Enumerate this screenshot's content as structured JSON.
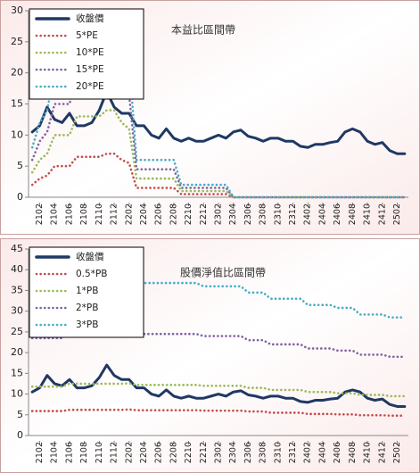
{
  "chart_data": [
    {
      "type": "line",
      "title": "本益比區間帶",
      "categories": [
        null,
        "2102",
        null,
        "2104",
        null,
        "2106",
        null,
        "2108",
        null,
        "2110",
        null,
        "2112",
        null,
        "2202",
        null,
        "2204",
        null,
        "2206",
        null,
        "2208",
        null,
        "2210",
        null,
        "2212",
        null,
        "2302",
        null,
        "2304",
        null,
        "2306",
        null,
        "2308",
        null,
        "2310",
        null,
        "2312",
        null,
        "2402",
        null,
        "2404",
        null,
        "2406",
        null,
        "2408",
        null,
        "2410",
        null,
        "2412",
        null,
        "2502",
        null
      ],
      "ylim": [
        0,
        30
      ],
      "yticks": [
        0,
        5,
        10,
        15,
        20,
        25,
        30
      ],
      "legend": "upper-left",
      "series": [
        {
          "name": "收盤價",
          "color": "#1f3864",
          "style": "solid",
          "values": [
            10.5,
            11.5,
            14.5,
            12.5,
            12,
            13.5,
            11.5,
            11.5,
            12,
            14,
            17,
            14.5,
            13.5,
            13.5,
            11.5,
            11.5,
            10,
            9.5,
            11,
            9.5,
            9,
            9.5,
            9,
            9,
            9.5,
            10,
            9.5,
            10.5,
            10.8,
            9.8,
            9.5,
            9,
            9.5,
            9.5,
            9,
            9,
            8.2,
            8,
            8.5,
            8.5,
            8.8,
            9,
            10.5,
            11,
            10.5,
            9,
            8.5,
            8.8,
            7.5,
            7,
            7
          ]
        },
        {
          "name": "5*PE",
          "color": "#c0504d",
          "style": "dotted",
          "values": [
            2,
            3,
            3.5,
            5,
            5,
            5,
            6.5,
            6.5,
            6.5,
            6.5,
            7,
            7,
            6,
            5.5,
            1.5,
            1.5,
            1.5,
            1.5,
            1.5,
            1.5,
            0.5,
            0.5,
            0.5,
            0.5,
            0.5,
            0.5,
            0.5,
            0,
            0,
            0,
            0,
            0,
            0,
            0,
            0,
            0,
            0,
            0,
            0,
            0,
            0,
            0,
            0,
            0,
            0,
            0,
            0,
            0,
            0,
            0,
            0
          ]
        },
        {
          "name": "10*PE",
          "color": "#9bbb59",
          "style": "dotted",
          "values": [
            4,
            6,
            7,
            10,
            10,
            10,
            13,
            13,
            13,
            13,
            14,
            14,
            12,
            11,
            3,
            3,
            3,
            3,
            3,
            3,
            1,
            1,
            1,
            1,
            1,
            1,
            1,
            0,
            0,
            0,
            0,
            0,
            0,
            0,
            0,
            0,
            0,
            0,
            0,
            0,
            0,
            0,
            0,
            0,
            0,
            0,
            0,
            0,
            0,
            0,
            0
          ]
        },
        {
          "name": "15*PE",
          "color": "#8064a2",
          "style": "dotted",
          "values": [
            6,
            9,
            10.5,
            15,
            15,
            15,
            19.5,
            19.5,
            19.5,
            19.5,
            21,
            21,
            18,
            16.5,
            4.5,
            4.5,
            4.5,
            4.5,
            4.5,
            4.5,
            1.5,
            1.5,
            1.5,
            1.5,
            1.5,
            1.5,
            1.5,
            0,
            0,
            0,
            0,
            0,
            0,
            0,
            0,
            0,
            0,
            0,
            0,
            0,
            0,
            0,
            0,
            0,
            0,
            0,
            0,
            0,
            0,
            0,
            0
          ]
        },
        {
          "name": "20*PE",
          "color": "#4bacc6",
          "style": "dotted",
          "values": [
            8,
            12,
            14,
            20,
            20,
            20,
            26,
            26,
            26,
            26,
            28,
            28,
            24,
            22,
            6,
            6,
            6,
            6,
            6,
            6,
            2,
            2,
            2,
            2,
            2,
            2,
            2,
            0,
            0,
            0,
            0,
            0,
            0,
            0,
            0,
            0,
            0,
            0,
            0,
            0,
            0,
            0,
            0,
            0,
            0,
            0,
            0,
            0,
            0,
            0,
            0
          ]
        }
      ]
    },
    {
      "type": "line",
      "title": "股價淨值比區間帶",
      "categories": [
        null,
        "2102",
        null,
        "2104",
        null,
        "2106",
        null,
        "2108",
        null,
        "2110",
        null,
        "2112",
        null,
        "2202",
        null,
        "2204",
        null,
        "2206",
        null,
        "2208",
        null,
        "2210",
        null,
        "2212",
        null,
        "2302",
        null,
        "2304",
        null,
        "2306",
        null,
        "2308",
        null,
        "2310",
        null,
        "2312",
        null,
        "2402",
        null,
        "2404",
        null,
        "2406",
        null,
        "2408",
        null,
        "2410",
        null,
        "2412",
        null,
        "2502",
        null
      ],
      "ylim": [
        0,
        45
      ],
      "yticks": [
        0,
        5,
        10,
        15,
        20,
        25,
        30,
        35,
        40,
        45
      ],
      "legend": "upper-left",
      "series": [
        {
          "name": "收盤價",
          "color": "#1f3864",
          "style": "solid",
          "values": [
            10.5,
            11.5,
            14.5,
            12.5,
            12,
            13.5,
            11.5,
            11.5,
            12,
            14,
            17,
            14.5,
            13.5,
            13.5,
            11.5,
            11.5,
            10,
            9.5,
            11,
            9.5,
            9,
            9.5,
            9,
            9,
            9.5,
            10,
            9.5,
            10.5,
            10.8,
            9.8,
            9.5,
            9,
            9.5,
            9.5,
            9,
            9,
            8.2,
            8,
            8.5,
            8.5,
            8.8,
            9,
            10.5,
            11,
            10.5,
            9,
            8.5,
            8.8,
            7.5,
            7,
            7
          ]
        },
        {
          "name": "0.5*PB",
          "color": "#c0504d",
          "style": "dotted",
          "values": [
            5.9,
            5.9,
            5.9,
            5.9,
            5.9,
            6.2,
            6.2,
            6.2,
            6.2,
            6.2,
            6.2,
            6.2,
            6.2,
            6.3,
            6.1,
            6.1,
            6.1,
            6.1,
            6.1,
            6.1,
            6.1,
            6.1,
            6.1,
            6,
            6,
            6,
            6,
            6,
            6,
            5.8,
            5.8,
            5.8,
            5.5,
            5.5,
            5.5,
            5.5,
            5.5,
            5.2,
            5.2,
            5.2,
            5.2,
            5.1,
            5.1,
            5.1,
            4.9,
            4.9,
            4.9,
            4.9,
            4.8,
            4.8,
            4.8
          ]
        },
        {
          "name": "1*PB",
          "color": "#9bbb59",
          "style": "dotted",
          "values": [
            11.8,
            11.8,
            11.8,
            11.8,
            11.8,
            12.5,
            12.5,
            12.5,
            12.5,
            12.5,
            12.5,
            12.5,
            12.5,
            12.6,
            12.2,
            12.2,
            12.2,
            12.2,
            12.2,
            12.2,
            12.2,
            12.2,
            12.2,
            12,
            12,
            12,
            12,
            12,
            12,
            11.5,
            11.5,
            11.5,
            11,
            11,
            11,
            11,
            11,
            10.5,
            10.5,
            10.5,
            10.5,
            10.2,
            10.2,
            10.2,
            9.8,
            9.8,
            9.8,
            9.8,
            9.5,
            9.5,
            9.5
          ]
        },
        {
          "name": "2*PB",
          "color": "#8064a2",
          "style": "dotted",
          "values": [
            23.5,
            23.5,
            23.5,
            23.5,
            23.5,
            25,
            25,
            25,
            25,
            25,
            25,
            25,
            25,
            25.2,
            24.5,
            24.5,
            24.5,
            24.5,
            24.5,
            24.5,
            24.5,
            24.5,
            24.5,
            24,
            24,
            24,
            24,
            24,
            24,
            23,
            23,
            23,
            22,
            22,
            22,
            22,
            22,
            21,
            21,
            21,
            21,
            20.5,
            20.5,
            20.5,
            19.5,
            19.5,
            19.5,
            19.5,
            19,
            19,
            19
          ]
        },
        {
          "name": "3*PB",
          "color": "#4bacc6",
          "style": "dotted",
          "values": [
            35.2,
            35.2,
            35.2,
            35.2,
            35.2,
            37.5,
            37.5,
            37.5,
            37.5,
            37.5,
            37.5,
            37.5,
            37.5,
            37.8,
            36.8,
            36.8,
            36.8,
            36.8,
            36.8,
            36.8,
            36.8,
            36.8,
            36.8,
            36,
            36,
            36,
            36,
            36,
            36,
            34.5,
            34.5,
            34.5,
            33,
            33,
            33,
            33,
            33,
            31.5,
            31.5,
            31.5,
            31.5,
            30.8,
            30.8,
            30.8,
            29.2,
            29.2,
            29.2,
            29.2,
            28.5,
            28.5,
            28.5
          ]
        }
      ]
    }
  ]
}
